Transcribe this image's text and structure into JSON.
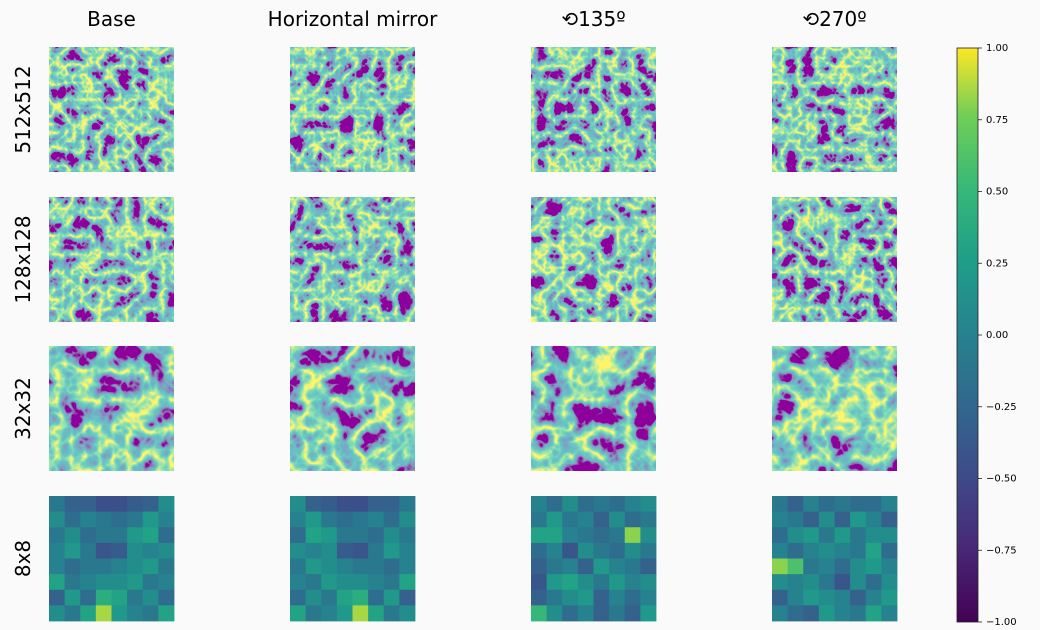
{
  "chart_data": {
    "type": "image-grid",
    "column_titles": [
      "Base",
      "Horizontal mirror",
      "⟲135º",
      "⟲270º"
    ],
    "row_titles": [
      "512x512",
      "128x128",
      "32x32",
      "8x8"
    ],
    "grids": [
      [
        [
          -0.1,
          -0.3,
          -0.3,
          -0.45,
          -0.45,
          -0.35,
          -0.3,
          0.1
        ],
        [
          0.1,
          -0.2,
          0.0,
          -0.1,
          -0.2,
          -0.1,
          0.2,
          0.0
        ],
        [
          -0.1,
          0.1,
          -0.2,
          -0.1,
          -0.1,
          0.2,
          0.3,
          -0.2
        ],
        [
          0.0,
          0.2,
          -0.1,
          -0.4,
          -0.35,
          0.1,
          0.0,
          0.1
        ],
        [
          0.0,
          -0.2,
          -0.1,
          -0.1,
          0.0,
          0.1,
          0.2,
          -0.1
        ],
        [
          0.3,
          -0.1,
          0.0,
          0.1,
          0.1,
          0.2,
          -0.1,
          0.0
        ],
        [
          -0.3,
          0.2,
          -0.2,
          0.4,
          0.3,
          -0.1,
          0.1,
          -0.2
        ],
        [
          0.1,
          -0.1,
          0.3,
          0.85,
          0.2,
          0.0,
          -0.1,
          0.3
        ]
      ],
      [
        [
          0.1,
          -0.3,
          -0.35,
          -0.45,
          -0.45,
          -0.3,
          -0.3,
          -0.1
        ],
        [
          0.0,
          0.2,
          -0.1,
          -0.2,
          -0.1,
          0.0,
          -0.2,
          0.1
        ],
        [
          -0.2,
          0.3,
          0.2,
          -0.1,
          -0.1,
          -0.2,
          0.1,
          -0.1
        ],
        [
          0.1,
          0.0,
          0.1,
          -0.35,
          -0.4,
          -0.1,
          0.2,
          0.0
        ],
        [
          -0.1,
          0.2,
          0.1,
          0.0,
          -0.1,
          -0.1,
          -0.2,
          0.0
        ],
        [
          0.0,
          -0.1,
          0.2,
          0.1,
          0.1,
          0.0,
          -0.1,
          0.3
        ],
        [
          -0.2,
          0.1,
          -0.1,
          0.3,
          0.4,
          -0.2,
          0.2,
          -0.3
        ],
        [
          0.3,
          -0.1,
          0.0,
          0.2,
          0.85,
          0.3,
          -0.1,
          0.1
        ]
      ],
      [
        [
          0.0,
          -0.2,
          0.1,
          -0.2,
          -0.1,
          -0.2,
          0.0,
          0.1
        ],
        [
          -0.1,
          0.2,
          -0.1,
          0.0,
          -0.3,
          0.1,
          -0.2,
          -0.1
        ],
        [
          0.3,
          0.3,
          0.0,
          -0.1,
          -0.2,
          -0.1,
          0.8,
          0.1
        ],
        [
          -0.2,
          0.0,
          -0.4,
          0.1,
          -0.1,
          -0.2,
          0.1,
          -0.1
        ],
        [
          -0.3,
          -0.1,
          0.0,
          -0.3,
          0.2,
          0.0,
          -0.1,
          -0.3
        ],
        [
          -0.4,
          0.2,
          0.3,
          0.1,
          -0.1,
          0.2,
          0.0,
          0.1
        ],
        [
          -0.3,
          -0.1,
          0.1,
          0.2,
          -0.3,
          0.0,
          -0.2,
          0.0
        ],
        [
          0.5,
          0.1,
          -0.2,
          0.0,
          -0.3,
          -0.1,
          -0.3,
          0.2
        ]
      ],
      [
        [
          -0.1,
          -0.3,
          0.0,
          -0.2,
          -0.1,
          -0.2,
          -0.2,
          0.0
        ],
        [
          0.0,
          -0.1,
          -0.3,
          0.1,
          -0.3,
          0.2,
          0.0,
          -0.3
        ],
        [
          -0.2,
          0.1,
          0.2,
          -0.1,
          0.2,
          -0.1,
          0.1,
          0.1
        ],
        [
          0.0,
          -0.2,
          0.0,
          0.1,
          0.0,
          -0.1,
          0.3,
          -0.2
        ],
        [
          0.8,
          0.6,
          -0.1,
          0.0,
          -0.2,
          0.1,
          0.2,
          0.0
        ],
        [
          0.1,
          0.0,
          0.1,
          -0.1,
          -0.4,
          0.1,
          -0.2,
          0.1
        ],
        [
          -0.3,
          0.0,
          0.2,
          0.1,
          0.0,
          -0.3,
          0.0,
          0.2
        ],
        [
          0.0,
          -0.2,
          -0.3,
          0.2,
          0.0,
          -0.1,
          0.3,
          0.0
        ]
      ]
    ],
    "clim": [
      -1,
      1
    ],
    "cticks": [
      {
        "value": 1,
        "label": "1.00"
      },
      {
        "value": 0.75,
        "label": "0.75"
      },
      {
        "value": 0.5,
        "label": "0.50"
      },
      {
        "value": 0.25,
        "label": "0.25"
      },
      {
        "value": 0,
        "label": "0.00"
      },
      {
        "value": -0.25,
        "label": "−0.25"
      },
      {
        "value": -0.5,
        "label": "−0.50"
      },
      {
        "value": -0.75,
        "label": "−0.75"
      },
      {
        "value": -1,
        "label": "−1.00"
      }
    ]
  }
}
